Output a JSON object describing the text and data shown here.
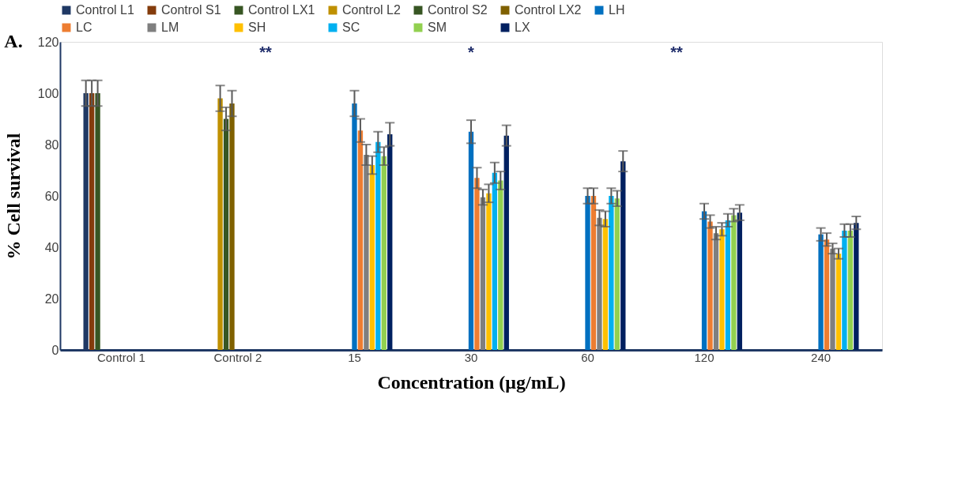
{
  "chart_data": {
    "type": "bar",
    "title": "A.",
    "xlabel": "Concentration (μg/mL)",
    "ylabel": "% Cell survival",
    "categories": [
      "Control 1",
      "Control 2",
      "15",
      "30",
      "60",
      "120",
      "240"
    ],
    "ylim": [
      0,
      120
    ],
    "yticks": [
      0,
      20,
      40,
      60,
      80,
      100,
      120
    ],
    "grid": false,
    "legend": "top",
    "series": [
      {
        "name": "Control L1",
        "color": "#1f3864",
        "values": [
          100,
          null,
          null,
          null,
          null,
          null,
          null
        ],
        "errors": [
          5,
          null,
          null,
          null,
          null,
          null,
          null
        ]
      },
      {
        "name": "Control S1",
        "color": "#843c0c",
        "values": [
          100,
          null,
          null,
          null,
          null,
          null,
          null
        ],
        "errors": [
          5,
          null,
          null,
          null,
          null,
          null,
          null
        ]
      },
      {
        "name": "Control LX1",
        "color": "#375623",
        "values": [
          100,
          null,
          null,
          null,
          null,
          null,
          null
        ],
        "errors": [
          5,
          null,
          null,
          null,
          null,
          null,
          null
        ]
      },
      {
        "name": "Control L2",
        "color": "#bf9000",
        "values": [
          null,
          98,
          null,
          null,
          null,
          null,
          null
        ],
        "errors": [
          null,
          5,
          null,
          null,
          null,
          null,
          null
        ]
      },
      {
        "name": "Control S2",
        "color": "#375623",
        "values": [
          null,
          90,
          null,
          null,
          null,
          null,
          null
        ],
        "errors": [
          null,
          4.5,
          null,
          null,
          null,
          null,
          null
        ]
      },
      {
        "name": "Control LX2",
        "color": "#7f6000",
        "values": [
          null,
          96,
          null,
          null,
          null,
          null,
          null
        ],
        "errors": [
          null,
          5,
          null,
          null,
          null,
          null,
          null
        ]
      },
      {
        "name": "LH",
        "color": "#0070c0",
        "values": [
          null,
          null,
          96,
          85,
          60,
          54,
          45
        ],
        "errors": [
          null,
          null,
          5,
          4.5,
          3,
          3,
          2.5
        ]
      },
      {
        "name": "LC",
        "color": "#ed7d31",
        "values": [
          null,
          null,
          85.5,
          67,
          60,
          50,
          43
        ],
        "errors": [
          null,
          null,
          4.5,
          4,
          3,
          2.5,
          2.5
        ]
      },
      {
        "name": "LM",
        "color": "#7f7f7f",
        "values": [
          null,
          null,
          76,
          59.5,
          51.5,
          45.5,
          39.5
        ],
        "errors": [
          null,
          null,
          4,
          3,
          3,
          2.5,
          2
        ]
      },
      {
        "name": "SH",
        "color": "#ffc000",
        "values": [
          null,
          null,
          72,
          61,
          51,
          47,
          37.5
        ],
        "errors": [
          null,
          null,
          3.5,
          3.5,
          3,
          2.5,
          2
        ]
      },
      {
        "name": "SC",
        "color": "#00b0f0",
        "values": [
          null,
          null,
          81,
          69,
          60,
          50.5,
          46.5
        ],
        "errors": [
          null,
          null,
          4,
          4,
          3,
          2.5,
          2.5
        ]
      },
      {
        "name": "SM",
        "color": "#92d050",
        "values": [
          null,
          null,
          75.5,
          66,
          59,
          52.5,
          46.5
        ],
        "errors": [
          null,
          null,
          3.5,
          3.5,
          3,
          2.5,
          2.5
        ]
      },
      {
        "name": "LX",
        "color": "#002060",
        "values": [
          null,
          null,
          84,
          83.5,
          73.5,
          53.5,
          49.5
        ],
        "errors": [
          null,
          null,
          4.5,
          4,
          4,
          3,
          2.5
        ]
      }
    ],
    "annotations": [
      "**",
      "*",
      "**"
    ]
  }
}
